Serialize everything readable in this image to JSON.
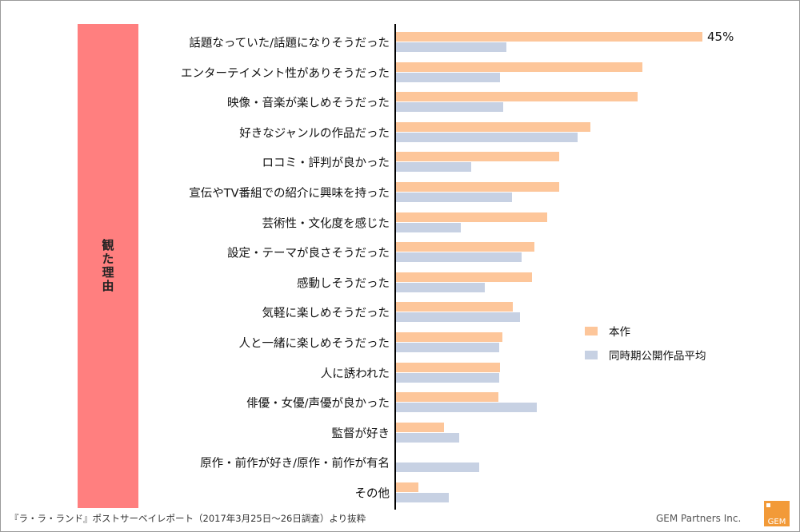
{
  "chart_data": {
    "type": "bar",
    "orientation": "horizontal",
    "y_axis_title": "観た理由",
    "categories": [
      "話題なっていた/話題になりそうだった",
      "エンターテイメント性がありそうだった",
      "映像・音楽が楽しめそうだった",
      "好きなジャンルの作品だった",
      "ロコミ・評判が良かった",
      "宣伝やTV番組での紹介に興味を持った",
      "芸術性・文化度を感じた",
      "設定・テーマが良さそうだった",
      "感動しそうだった",
      "気軽に楽しめそうだった",
      "人と一緒に楽しめそうだった",
      "人に誘われた",
      "俳優・女優/声優が良かった",
      "監督が好き",
      "原作・前作が好き/原作・前作が有名",
      "その他"
    ],
    "series": [
      {
        "name": "本作",
        "color": "#fdc69a",
        "values": [
          45,
          36.2,
          35.5,
          28.5,
          24,
          24,
          22.2,
          20.3,
          20,
          17.2,
          15.6,
          15.3,
          15,
          7,
          0,
          3.3
        ]
      },
      {
        "name": "同時期公開作品平均",
        "color": "#c7d1e3",
        "values": [
          16.2,
          15.3,
          15.8,
          26.7,
          11,
          17,
          9.5,
          18.4,
          13,
          18.2,
          15.1,
          15.1,
          20.7,
          9.3,
          12.2,
          7.7
        ]
      }
    ],
    "data_labels": [
      {
        "category_index": 0,
        "series_index": 0,
        "text": "45%"
      }
    ],
    "xlim": [
      0,
      46
    ],
    "legend_position": "right",
    "grid": false
  },
  "footer": {
    "source_note": "『ラ・ラ・ランド』ポストサーベイレポート（2017年3月25日～26日調査）より抜粋",
    "company": "GEM Partners Inc.",
    "logo_text": "GEM"
  }
}
